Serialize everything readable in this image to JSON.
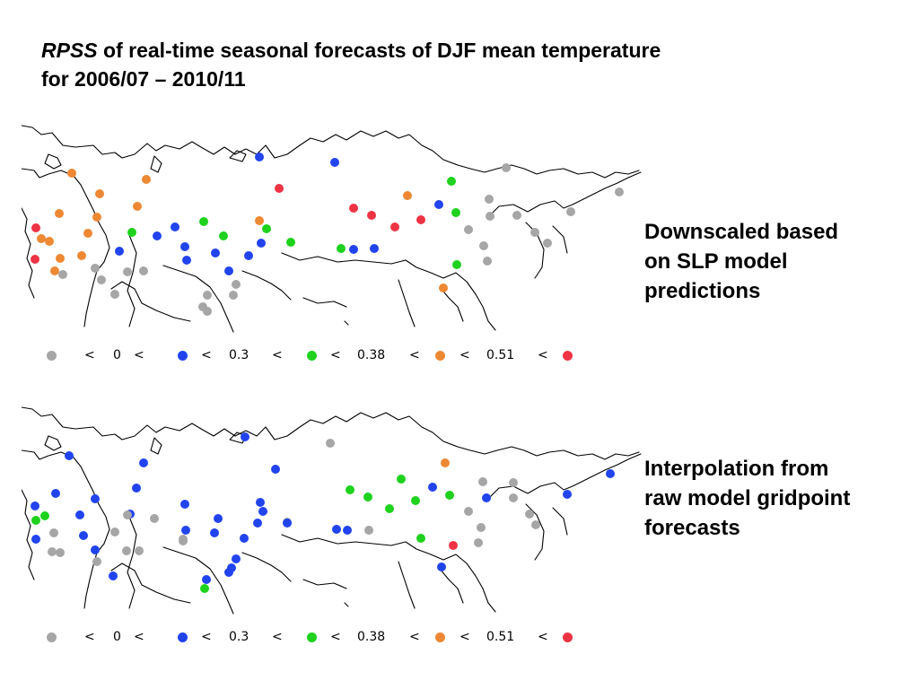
{
  "title": {
    "italic": "RPSS",
    "rest": " of real-time seasonal forecasts of DJF mean temperature",
    "line2": "for 2006/07 – 2010/11"
  },
  "colors": {
    "class0": "#a6a6a6",
    "class1": "#2244ee",
    "class2": "#1ed21e",
    "class3": "#ee8833",
    "class4": "#ee3344"
  },
  "legend": {
    "symbols": [
      "<",
      "0",
      "<",
      "<",
      "0.3",
      "<",
      "<",
      "0.38",
      "<",
      "<",
      "0.51",
      "<"
    ]
  },
  "panels": [
    {
      "label_lines": [
        "Downscaled based",
        "on SLP model",
        "predictions"
      ],
      "stations": [
        [
          1,
          265,
          43
        ],
        [
          1,
          349,
          49
        ],
        [
          0,
          540,
          55
        ],
        [
          2,
          479,
          70
        ],
        [
          0,
          666,
          82
        ],
        [
          3,
          56,
          61
        ],
        [
          3,
          87,
          84
        ],
        [
          3,
          139,
          68
        ],
        [
          4,
          287,
          78
        ],
        [
          3,
          430,
          86
        ],
        [
          1,
          465,
          96
        ],
        [
          0,
          521,
          90
        ],
        [
          3,
          42,
          106
        ],
        [
          3,
          84,
          110
        ],
        [
          3,
          129,
          98
        ],
        [
          2,
          203,
          115
        ],
        [
          3,
          265,
          114
        ],
        [
          4,
          370,
          100
        ],
        [
          4,
          390,
          108
        ],
        [
          4,
          445,
          113
        ],
        [
          4,
          416,
          121
        ],
        [
          2,
          484,
          105
        ],
        [
          0,
          522,
          109
        ],
        [
          0,
          552,
          108
        ],
        [
          0,
          612,
          104
        ],
        [
          4,
          16,
          122
        ],
        [
          3,
          22,
          134
        ],
        [
          3,
          31,
          137
        ],
        [
          3,
          74,
          128
        ],
        [
          2,
          123,
          127
        ],
        [
          1,
          171,
          121
        ],
        [
          1,
          151,
          131
        ],
        [
          1,
          182,
          143
        ],
        [
          2,
          225,
          131
        ],
        [
          2,
          273,
          123
        ],
        [
          1,
          267,
          139
        ],
        [
          2,
          300,
          138
        ],
        [
          2,
          356,
          145
        ],
        [
          1,
          370,
          146
        ],
        [
          1,
          393,
          145
        ],
        [
          0,
          498,
          124
        ],
        [
          0,
          572,
          127
        ],
        [
          0,
          586,
          139
        ],
        [
          0,
          515,
          142
        ],
        [
          4,
          15,
          157
        ],
        [
          3,
          67,
          153
        ],
        [
          3,
          43,
          156
        ],
        [
          1,
          109,
          148
        ],
        [
          1,
          184,
          158
        ],
        [
          1,
          216,
          150
        ],
        [
          1,
          253,
          153
        ],
        [
          0,
          82,
          167
        ],
        [
          0,
          118,
          171
        ],
        [
          0,
          136,
          170
        ],
        [
          3,
          37,
          170
        ],
        [
          0,
          46,
          174
        ],
        [
          0,
          89,
          180
        ],
        [
          1,
          231,
          170
        ],
        [
          2,
          485,
          163
        ],
        [
          0,
          519,
          159
        ],
        [
          0,
          104,
          196
        ],
        [
          3,
          470,
          189
        ],
        [
          0,
          236,
          197
        ],
        [
          0,
          207,
          197
        ],
        [
          0,
          239,
          185
        ],
        [
          0,
          202,
          210
        ],
        [
          0,
          207,
          215
        ]
      ]
    },
    {
      "label_lines": [
        "Interpolation from",
        "raw model gridpoint",
        "forecasts"
      ],
      "stations": [
        [
          1,
          249,
          41
        ],
        [
          0,
          344,
          48
        ],
        [
          1,
          53,
          62
        ],
        [
          1,
          136,
          70
        ],
        [
          3,
          472,
          70
        ],
        [
          1,
          283,
          77
        ],
        [
          1,
          656,
          82
        ],
        [
          2,
          423,
          88
        ],
        [
          0,
          514,
          91
        ],
        [
          1,
          128,
          98
        ],
        [
          1,
          458,
          97
        ],
        [
          0,
          548,
          92
        ],
        [
          2,
          366,
          100
        ],
        [
          2,
          386,
          108
        ],
        [
          2,
          439,
          112
        ],
        [
          2,
          477,
          106
        ],
        [
          1,
          518,
          109
        ],
        [
          0,
          548,
          109
        ],
        [
          1,
          608,
          105
        ],
        [
          1,
          38,
          104
        ],
        [
          1,
          82,
          110
        ],
        [
          1,
          182,
          116
        ],
        [
          1,
          266,
          114
        ],
        [
          1,
          15,
          118
        ],
        [
          2,
          26,
          129
        ],
        [
          2,
          16,
          134
        ],
        [
          1,
          65,
          128
        ],
        [
          1,
          121,
          127
        ],
        [
          0,
          148,
          132
        ],
        [
          2,
          410,
          121
        ],
        [
          1,
          269,
          124
        ],
        [
          1,
          219,
          132
        ],
        [
          1,
          183,
          145
        ],
        [
          1,
          263,
          137
        ],
        [
          0,
          296,
          136
        ],
        [
          1,
          296,
          137
        ],
        [
          0,
          118,
          128
        ],
        [
          0,
          566,
          127
        ],
        [
          0,
          573,
          139
        ],
        [
          0,
          498,
          124
        ],
        [
          0,
          104,
          147
        ],
        [
          0,
          36,
          148
        ],
        [
          1,
          69,
          151
        ],
        [
          1,
          16,
          155
        ],
        [
          0,
          180,
          157
        ],
        [
          1,
          215,
          148
        ],
        [
          1,
          248,
          154
        ],
        [
          1,
          351,
          144
        ],
        [
          1,
          363,
          145
        ],
        [
          0,
          387,
          145
        ],
        [
          2,
          445,
          154
        ],
        [
          0,
          512,
          142
        ],
        [
          4,
          481,
          162
        ],
        [
          0,
          509,
          159
        ],
        [
          1,
          82,
          167
        ],
        [
          0,
          117,
          168
        ],
        [
          0,
          131,
          168
        ],
        [
          0,
          34,
          169
        ],
        [
          0,
          43,
          170
        ],
        [
          0,
          84,
          180
        ],
        [
          1,
          239,
          177
        ],
        [
          1,
          102,
          196
        ],
        [
          1,
          234,
          187
        ],
        [
          1,
          231,
          192
        ],
        [
          1,
          206,
          200
        ],
        [
          2,
          204,
          210
        ],
        [
          1,
          468,
          186
        ],
        [
          0,
          180,
          155
        ]
      ]
    }
  ]
}
